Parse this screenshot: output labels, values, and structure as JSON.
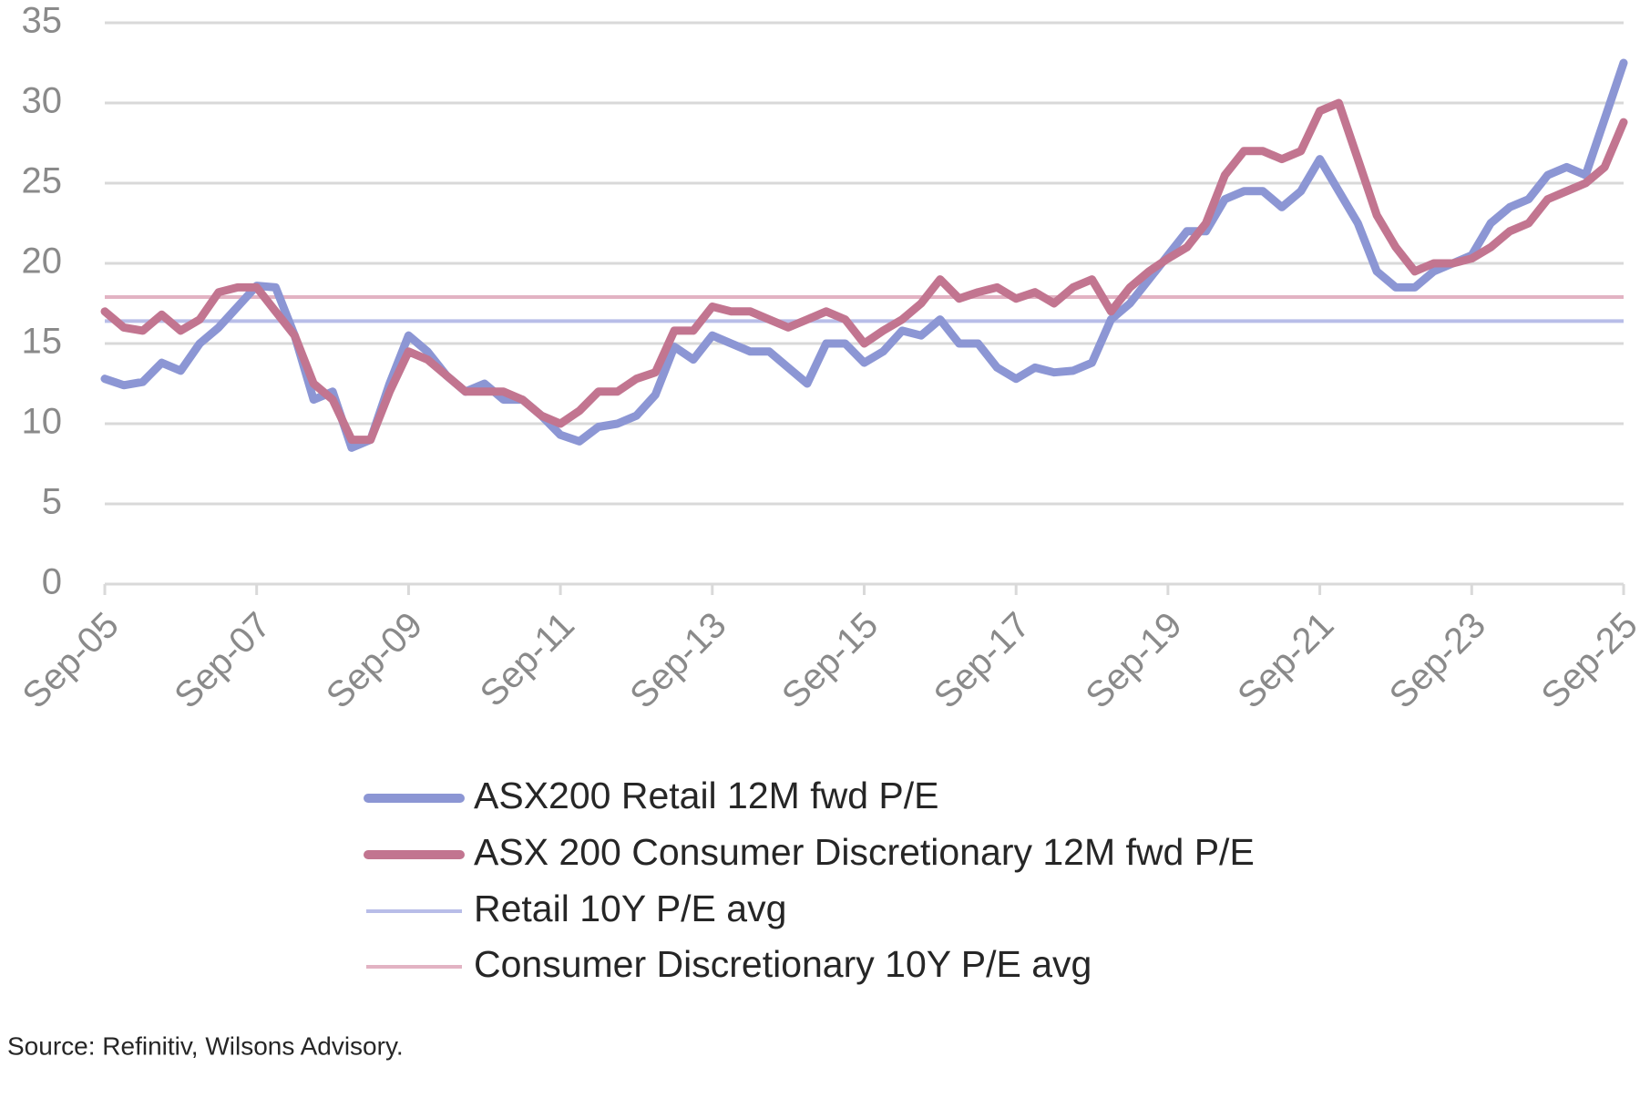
{
  "chart_data": {
    "type": "line",
    "categories": [
      "Sep-05",
      null,
      null,
      null,
      null,
      null,
      null,
      null,
      "Sep-07",
      null,
      null,
      null,
      null,
      null,
      null,
      null,
      "Sep-09",
      null,
      null,
      null,
      null,
      null,
      null,
      null,
      "Sep-11",
      null,
      null,
      null,
      null,
      null,
      null,
      null,
      "Sep-13",
      null,
      null,
      null,
      null,
      null,
      null,
      null,
      "Sep-15",
      null,
      null,
      null,
      null,
      null,
      null,
      null,
      "Sep-17",
      null,
      null,
      null,
      null,
      null,
      null,
      null,
      "Sep-19",
      null,
      null,
      null,
      null,
      null,
      null,
      null,
      "Sep-21",
      null,
      null,
      null,
      null,
      null,
      null,
      null,
      "Sep-23",
      null,
      null,
      null,
      null,
      null,
      null,
      null,
      "Sep-25"
    ],
    "series": [
      {
        "name": "ASX200 Retail 12M fwd P/E",
        "color": "#8c96d4",
        "values": [
          12.8,
          12.4,
          12.6,
          13.8,
          13.3,
          15.0,
          16.0,
          17.3,
          18.6,
          18.5,
          15.5,
          11.5,
          12.0,
          8.5,
          9.0,
          12.5,
          15.5,
          14.5,
          13.0,
          12.0,
          12.5,
          11.5,
          11.5,
          10.5,
          9.3,
          8.9,
          9.8,
          10.0,
          10.5,
          11.8,
          14.8,
          14.0,
          15.5,
          15.0,
          14.5,
          14.5,
          13.5,
          12.5,
          15.0,
          15.0,
          13.8,
          14.5,
          15.8,
          15.5,
          16.5,
          15.0,
          15.0,
          13.5,
          12.8,
          13.5,
          13.2,
          13.3,
          13.8,
          16.5,
          17.5,
          19.0,
          20.5,
          22.0,
          22.0,
          24.0,
          24.5,
          24.5,
          23.5,
          24.5,
          26.5,
          24.5,
          22.5,
          19.5,
          18.5,
          18.5,
          19.5,
          20.0,
          20.5,
          22.5,
          23.5,
          24.0,
          25.5,
          26.0,
          25.5,
          29.0,
          32.5
        ]
      },
      {
        "name": "ASX 200 Consumer Discretionary 12M fwd P/E",
        "color": "#c27590",
        "values": [
          17.0,
          16.0,
          15.8,
          16.8,
          15.8,
          16.5,
          18.2,
          18.5,
          18.5,
          17.0,
          15.5,
          12.5,
          11.5,
          9.0,
          9.0,
          12.0,
          14.5,
          14.0,
          13.0,
          12.0,
          12.0,
          12.0,
          11.5,
          10.5,
          10.0,
          10.8,
          12.0,
          12.0,
          12.8,
          13.2,
          15.8,
          15.8,
          17.3,
          17.0,
          17.0,
          16.5,
          16.0,
          16.5,
          17.0,
          16.5,
          15.0,
          15.8,
          16.5,
          17.5,
          19.0,
          17.8,
          18.2,
          18.5,
          17.8,
          18.2,
          17.5,
          18.5,
          19.0,
          17.0,
          18.5,
          19.5,
          20.3,
          21.0,
          22.5,
          25.5,
          27.0,
          27.0,
          26.5,
          27.0,
          29.5,
          30.0,
          26.5,
          23.0,
          21.0,
          19.5,
          20.0,
          20.0,
          20.3,
          21.0,
          22.0,
          22.5,
          24.0,
          24.5,
          25.0,
          26.0,
          28.8
        ]
      }
    ],
    "reference_lines": [
      {
        "name": "Retail 10Y P/E avg",
        "color": "#b8bde8",
        "value": 16.4
      },
      {
        "name": "Consumer Discretionary 10Y P/E avg",
        "color": "#e2b3c3",
        "value": 17.9
      }
    ],
    "ylim": [
      0,
      35
    ],
    "yticks": [
      0,
      5,
      10,
      15,
      20,
      25,
      30,
      35
    ],
    "grid": true,
    "source": "Source: Refinitiv, Wilsons Advisory."
  }
}
